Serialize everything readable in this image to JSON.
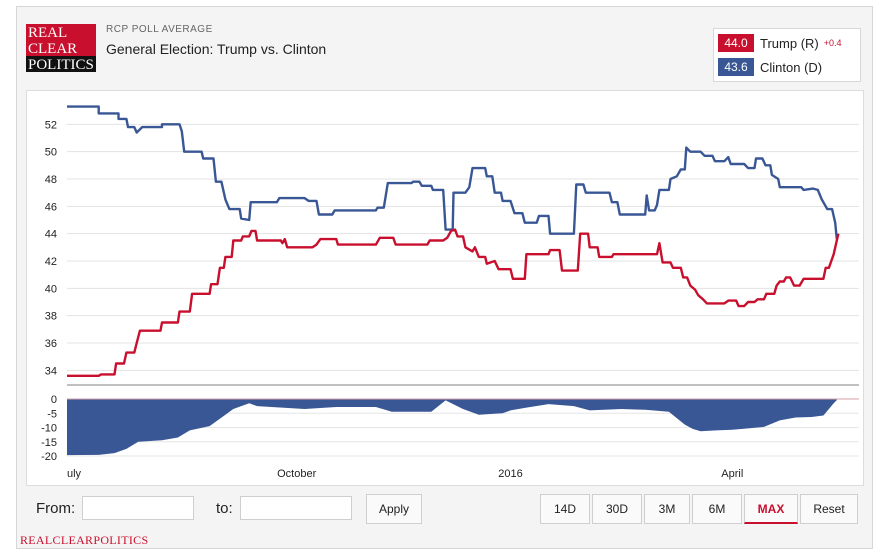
{
  "header": {
    "logo_lines": [
      "REAL",
      "CLEAR",
      "POLITICS"
    ],
    "kicker": "RCP POLL AVERAGE",
    "title": "General Election: Trump vs. Clinton"
  },
  "legend": [
    {
      "value": "44.0",
      "name": "Trump (R)",
      "change": "+0.4",
      "color": "#c8102e"
    },
    {
      "value": "43.6",
      "name": "Clinton (D)",
      "change": "",
      "color": "#3a5795"
    }
  ],
  "controls": {
    "from_label": "From:",
    "to_label": "to:",
    "apply_label": "Apply",
    "ranges": [
      "14D",
      "30D",
      "3M",
      "6M",
      "MAX",
      "Reset"
    ],
    "active_range": "MAX"
  },
  "footer": "REALCLEARPOLITICS",
  "chart_data": {
    "type": "line",
    "x_ticks": [
      {
        "label": "uly",
        "t": 0.0
      },
      {
        "label": "October",
        "t": 0.29
      },
      {
        "label": "2016",
        "t": 0.56
      },
      {
        "label": "April",
        "t": 0.84
      }
    ],
    "ylim": [
      33,
      54
    ],
    "yticks": [
      34,
      36,
      38,
      40,
      42,
      44,
      46,
      48,
      50,
      52
    ],
    "spread_ylim": [
      -20,
      0
    ],
    "spread_yticks": [
      0,
      -5,
      -10,
      -15,
      -20
    ],
    "grid": true,
    "series": [
      {
        "name": "Clinton (D)",
        "color": "#3a5795",
        "points": [
          [
            0.0,
            53.3
          ],
          [
            0.04,
            53.3
          ],
          [
            0.04,
            52.8
          ],
          [
            0.065,
            52.8
          ],
          [
            0.065,
            52.4
          ],
          [
            0.075,
            52.4
          ],
          [
            0.077,
            51.8
          ],
          [
            0.085,
            51.8
          ],
          [
            0.088,
            51.4
          ],
          [
            0.095,
            51.8
          ],
          [
            0.12,
            51.8
          ],
          [
            0.12,
            52.0
          ],
          [
            0.142,
            52.0
          ],
          [
            0.145,
            51.5
          ],
          [
            0.148,
            50.0
          ],
          [
            0.17,
            50.0
          ],
          [
            0.172,
            49.5
          ],
          [
            0.185,
            49.5
          ],
          [
            0.188,
            47.8
          ],
          [
            0.195,
            47.8
          ],
          [
            0.2,
            46.5
          ],
          [
            0.205,
            45.8
          ],
          [
            0.218,
            45.8
          ],
          [
            0.22,
            45.1
          ],
          [
            0.23,
            45.0
          ],
          [
            0.232,
            46.3
          ],
          [
            0.265,
            46.3
          ],
          [
            0.268,
            46.6
          ],
          [
            0.3,
            46.6
          ],
          [
            0.305,
            46.4
          ],
          [
            0.315,
            46.4
          ],
          [
            0.318,
            45.4
          ],
          [
            0.335,
            45.4
          ],
          [
            0.338,
            45.7
          ],
          [
            0.39,
            45.7
          ],
          [
            0.392,
            45.9
          ],
          [
            0.4,
            45.9
          ],
          [
            0.405,
            47.7
          ],
          [
            0.435,
            47.7
          ],
          [
            0.437,
            47.8
          ],
          [
            0.445,
            47.8
          ],
          [
            0.448,
            47.5
          ],
          [
            0.46,
            47.5
          ],
          [
            0.462,
            47.2
          ],
          [
            0.475,
            47.2
          ],
          [
            0.478,
            44.3
          ],
          [
            0.487,
            44.3
          ],
          [
            0.488,
            47.0
          ],
          [
            0.503,
            47.0
          ],
          [
            0.508,
            47.4
          ],
          [
            0.512,
            48.8
          ],
          [
            0.528,
            48.8
          ],
          [
            0.53,
            48.2
          ],
          [
            0.537,
            48.2
          ],
          [
            0.54,
            47.0
          ],
          [
            0.548,
            47.0
          ],
          [
            0.55,
            46.4
          ],
          [
            0.56,
            46.4
          ],
          [
            0.565,
            45.5
          ],
          [
            0.575,
            45.5
          ],
          [
            0.578,
            44.8
          ],
          [
            0.593,
            44.8
          ],
          [
            0.596,
            45.3
          ],
          [
            0.608,
            45.3
          ],
          [
            0.61,
            44.0
          ],
          [
            0.64,
            44.0
          ],
          [
            0.643,
            47.6
          ],
          [
            0.652,
            47.6
          ],
          [
            0.655,
            47.0
          ],
          [
            0.685,
            47.0
          ],
          [
            0.688,
            46.3
          ],
          [
            0.695,
            46.3
          ],
          [
            0.698,
            45.4
          ],
          [
            0.73,
            45.4
          ],
          [
            0.732,
            46.8
          ],
          [
            0.735,
            45.7
          ],
          [
            0.742,
            45.7
          ],
          [
            0.745,
            46.1
          ],
          [
            0.748,
            47.2
          ],
          [
            0.76,
            47.2
          ],
          [
            0.762,
            48.0
          ],
          [
            0.77,
            48.2
          ],
          [
            0.775,
            48.7
          ],
          [
            0.78,
            48.7
          ],
          [
            0.782,
            50.3
          ],
          [
            0.787,
            50.0
          ],
          [
            0.8,
            50.0
          ],
          [
            0.805,
            49.7
          ],
          [
            0.815,
            49.7
          ],
          [
            0.818,
            49.3
          ],
          [
            0.83,
            49.3
          ],
          [
            0.835,
            49.6
          ],
          [
            0.838,
            49.1
          ],
          [
            0.855,
            49.1
          ],
          [
            0.86,
            48.8
          ],
          [
            0.868,
            48.8
          ],
          [
            0.87,
            49.5
          ],
          [
            0.878,
            49.5
          ],
          [
            0.882,
            49.0
          ],
          [
            0.888,
            49.0
          ],
          [
            0.89,
            48.3
          ],
          [
            0.898,
            48.0
          ],
          [
            0.9,
            47.4
          ],
          [
            0.927,
            47.4
          ],
          [
            0.93,
            47.2
          ],
          [
            0.942,
            47.3
          ],
          [
            0.948,
            47.2
          ],
          [
            0.953,
            46.5
          ],
          [
            0.96,
            45.8
          ],
          [
            0.966,
            45.8
          ],
          [
            0.97,
            44.8
          ],
          [
            0.972,
            43.6
          ]
        ]
      },
      {
        "name": "Trump (R)",
        "color": "#c8102e",
        "points": [
          [
            0.0,
            33.6
          ],
          [
            0.04,
            33.6
          ],
          [
            0.043,
            33.7
          ],
          [
            0.06,
            33.7
          ],
          [
            0.062,
            34.5
          ],
          [
            0.072,
            34.5
          ],
          [
            0.075,
            35.3
          ],
          [
            0.085,
            35.3
          ],
          [
            0.088,
            36.0
          ],
          [
            0.092,
            36.9
          ],
          [
            0.118,
            36.9
          ],
          [
            0.12,
            37.5
          ],
          [
            0.14,
            37.5
          ],
          [
            0.142,
            38.3
          ],
          [
            0.155,
            38.3
          ],
          [
            0.158,
            39.6
          ],
          [
            0.18,
            39.6
          ],
          [
            0.182,
            40.3
          ],
          [
            0.19,
            40.3
          ],
          [
            0.193,
            41.5
          ],
          [
            0.198,
            41.5
          ],
          [
            0.2,
            42.3
          ],
          [
            0.208,
            42.3
          ],
          [
            0.21,
            43.5
          ],
          [
            0.22,
            43.5
          ],
          [
            0.222,
            43.8
          ],
          [
            0.23,
            43.8
          ],
          [
            0.233,
            44.2
          ],
          [
            0.238,
            44.2
          ],
          [
            0.24,
            43.5
          ],
          [
            0.27,
            43.5
          ],
          [
            0.272,
            43.3
          ],
          [
            0.275,
            43.6
          ],
          [
            0.278,
            43.0
          ],
          [
            0.31,
            43.0
          ],
          [
            0.315,
            43.2
          ],
          [
            0.32,
            43.6
          ],
          [
            0.34,
            43.6
          ],
          [
            0.342,
            43.2
          ],
          [
            0.39,
            43.2
          ],
          [
            0.395,
            43.7
          ],
          [
            0.412,
            43.7
          ],
          [
            0.415,
            43.2
          ],
          [
            0.455,
            43.2
          ],
          [
            0.458,
            43.5
          ],
          [
            0.475,
            43.5
          ],
          [
            0.48,
            43.7
          ],
          [
            0.485,
            44.2
          ],
          [
            0.49,
            44.3
          ],
          [
            0.493,
            43.8
          ],
          [
            0.5,
            43.8
          ],
          [
            0.503,
            43.0
          ],
          [
            0.512,
            42.7
          ],
          [
            0.515,
            43.0
          ],
          [
            0.52,
            42.3
          ],
          [
            0.528,
            42.3
          ],
          [
            0.53,
            41.8
          ],
          [
            0.54,
            42.0
          ],
          [
            0.545,
            41.4
          ],
          [
            0.56,
            41.4
          ],
          [
            0.563,
            40.7
          ],
          [
            0.578,
            40.7
          ],
          [
            0.58,
            42.5
          ],
          [
            0.608,
            42.5
          ],
          [
            0.61,
            42.8
          ],
          [
            0.622,
            42.8
          ],
          [
            0.625,
            41.3
          ],
          [
            0.645,
            41.3
          ],
          [
            0.648,
            44.0
          ],
          [
            0.658,
            44.0
          ],
          [
            0.66,
            43.0
          ],
          [
            0.67,
            43.0
          ],
          [
            0.672,
            42.3
          ],
          [
            0.688,
            42.3
          ],
          [
            0.69,
            42.5
          ],
          [
            0.745,
            42.5
          ],
          [
            0.748,
            43.3
          ],
          [
            0.752,
            41.9
          ],
          [
            0.762,
            41.9
          ],
          [
            0.765,
            41.5
          ],
          [
            0.775,
            41.5
          ],
          [
            0.778,
            40.8
          ],
          [
            0.783,
            40.8
          ],
          [
            0.787,
            40.2
          ],
          [
            0.793,
            39.9
          ],
          [
            0.797,
            39.5
          ],
          [
            0.803,
            39.2
          ],
          [
            0.808,
            38.9
          ],
          [
            0.83,
            38.9
          ],
          [
            0.835,
            39.1
          ],
          [
            0.845,
            39.1
          ],
          [
            0.848,
            38.7
          ],
          [
            0.855,
            38.7
          ],
          [
            0.86,
            39.0
          ],
          [
            0.868,
            39.0
          ],
          [
            0.872,
            39.2
          ],
          [
            0.88,
            39.2
          ],
          [
            0.883,
            39.6
          ],
          [
            0.893,
            39.6
          ],
          [
            0.896,
            40.2
          ],
          [
            0.9,
            40.5
          ],
          [
            0.905,
            40.5
          ],
          [
            0.908,
            40.8
          ],
          [
            0.913,
            40.8
          ],
          [
            0.918,
            40.2
          ],
          [
            0.925,
            40.2
          ],
          [
            0.93,
            40.7
          ],
          [
            0.955,
            40.7
          ],
          [
            0.958,
            41.5
          ],
          [
            0.962,
            41.5
          ],
          [
            0.965,
            42.0
          ],
          [
            0.968,
            42.5
          ],
          [
            0.972,
            43.5
          ],
          [
            0.974,
            44.0
          ]
        ]
      }
    ],
    "spread": {
      "color": "#3a5795",
      "points": [
        [
          0.0,
          -19.7
        ],
        [
          0.04,
          -19.6
        ],
        [
          0.06,
          -19.0
        ],
        [
          0.075,
          -17.5
        ],
        [
          0.09,
          -15.0
        ],
        [
          0.12,
          -14.5
        ],
        [
          0.14,
          -13.5
        ],
        [
          0.155,
          -11.0
        ],
        [
          0.18,
          -9.5
        ],
        [
          0.2,
          -5.5
        ],
        [
          0.21,
          -3.5
        ],
        [
          0.23,
          -1.5
        ],
        [
          0.24,
          -2.5
        ],
        [
          0.3,
          -3.5
        ],
        [
          0.34,
          -2.8
        ],
        [
          0.39,
          -2.8
        ],
        [
          0.41,
          -4.5
        ],
        [
          0.46,
          -4.5
        ],
        [
          0.478,
          -0.5
        ],
        [
          0.5,
          -3.5
        ],
        [
          0.52,
          -5.5
        ],
        [
          0.55,
          -5.0
        ],
        [
          0.56,
          -4.0
        ],
        [
          0.58,
          -3.0
        ],
        [
          0.608,
          -1.8
        ],
        [
          0.64,
          -2.5
        ],
        [
          0.66,
          -4.0
        ],
        [
          0.7,
          -3.5
        ],
        [
          0.73,
          -3.8
        ],
        [
          0.76,
          -4.5
        ],
        [
          0.78,
          -9.0
        ],
        [
          0.79,
          -10.5
        ],
        [
          0.8,
          -11.3
        ],
        [
          0.82,
          -11.0
        ],
        [
          0.84,
          -10.8
        ],
        [
          0.86,
          -10.3
        ],
        [
          0.88,
          -9.8
        ],
        [
          0.9,
          -7.5
        ],
        [
          0.92,
          -6.5
        ],
        [
          0.94,
          -6.3
        ],
        [
          0.955,
          -5.8
        ],
        [
          0.962,
          -3.5
        ],
        [
          0.968,
          -1.5
        ],
        [
          0.972,
          -0.4
        ]
      ]
    }
  }
}
